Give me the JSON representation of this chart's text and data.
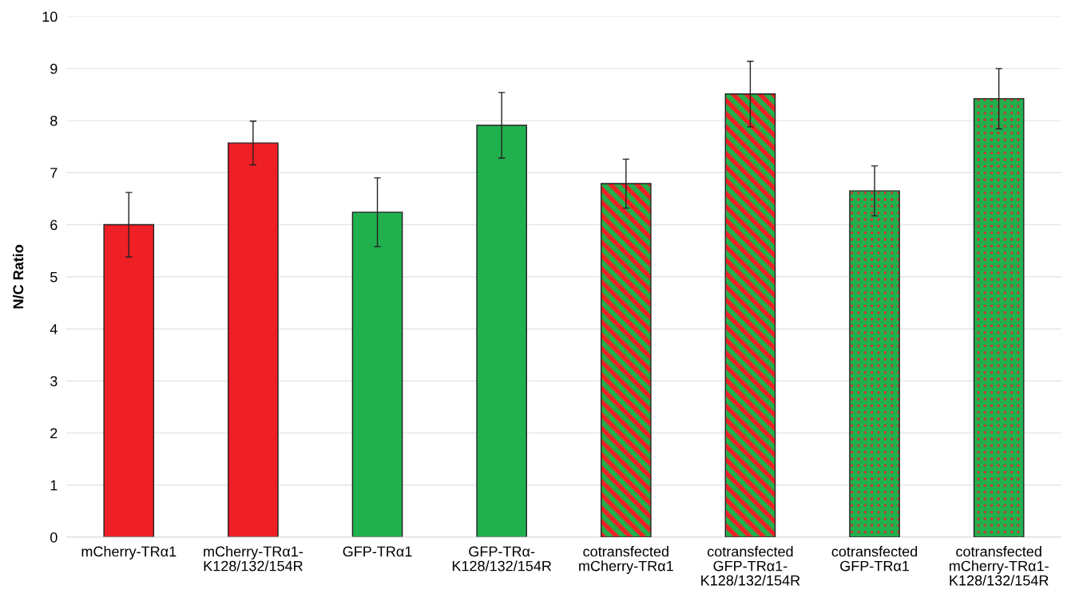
{
  "chart_data": {
    "type": "bar",
    "ylabel": "N/C Ratio",
    "categories": [
      "mCherry-TRα1",
      "mCherry-TRα1-\nK128/132/154R",
      "GFP-TRα1",
      "GFP-TRα-\nK128/132/154R",
      "cotransfected\nmCherry-TRα1",
      "cotransfected\nGFP-TRα1-\nK128/132/154R",
      "cotransfected\nGFP-TRα1",
      "cotransfected\nmCherry-TRα1-\nK128/132/154R"
    ],
    "values": [
      6.0,
      7.57,
      6.24,
      7.91,
      6.79,
      8.51,
      6.65,
      8.42
    ],
    "errors": [
      0.62,
      0.42,
      0.66,
      0.63,
      0.47,
      0.63,
      0.48,
      0.58
    ],
    "colors": [
      "#ee1f25",
      "#ee1f25",
      "#21b04e",
      "#21b04e",
      [
        "#21b04e",
        "#ee1f25"
      ],
      [
        "#21b04e",
        "#ee1f25"
      ],
      [
        "#ee1f25",
        "#21b04e"
      ],
      [
        "#ee1f25",
        "#21b04e"
      ]
    ],
    "ylim": [
      0,
      10
    ],
    "yticks": [
      0,
      1,
      2,
      3,
      4,
      5,
      6,
      7,
      8,
      9,
      10
    ],
    "grid": "y"
  }
}
